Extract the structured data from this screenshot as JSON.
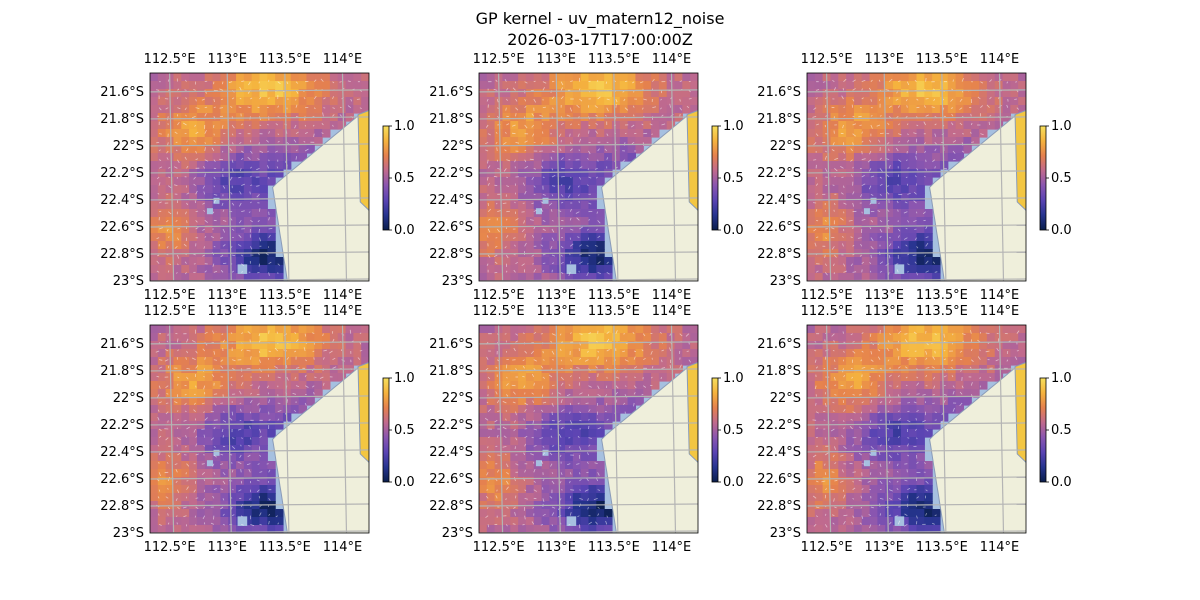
{
  "figure": {
    "title": "GP kernel - uv_matern12_noise",
    "subtitle": "2026-03-17T17:00:00Z"
  },
  "colors": {
    "land": "#efefdb",
    "water_edge": "#a6c0e0",
    "gridline": "#b4b4b4",
    "colormap": [
      "#0a1e4c",
      "#26348f",
      "#5a44b3",
      "#8a56b0",
      "#c06a8e",
      "#e5814e",
      "#f5b33e",
      "#f7df5c"
    ]
  },
  "chart_data": [
    {
      "type": "heatmap",
      "panel": "top-left",
      "lon_labels": [
        "112.5°E",
        "113°E",
        "113.5°E",
        "114°E"
      ],
      "lat_labels": [
        "21.6°S",
        "21.8°S",
        "22°S",
        "22.2°S",
        "22.4°S",
        "22.6°S",
        "22.8°S",
        "23°S"
      ],
      "lon_values": [
        112.5,
        113.0,
        113.5,
        114.0
      ],
      "lat_values": [
        -21.6,
        -21.8,
        -22.0,
        -22.2,
        -22.4,
        -22.6,
        -22.8,
        -23.0
      ],
      "xlim": [
        112.33,
        114.23
      ],
      "ylim": [
        -23.0,
        -21.46
      ],
      "grid": true,
      "colorbar": {
        "range": [
          0.0,
          1.0
        ],
        "ticks": [
          "0.0",
          "0.5",
          "1.0"
        ],
        "tick_values": [
          0,
          0.5,
          1.0
        ]
      },
      "overlay": "uv-vectors"
    },
    {
      "type": "heatmap",
      "panel": "top-middle",
      "lon_labels": [
        "112.5°E",
        "113°E",
        "113.5°E",
        "114°E"
      ],
      "lat_labels": [
        "21.6°S",
        "21.8°S",
        "22°S",
        "22.2°S",
        "22.4°S",
        "22.6°S",
        "22.8°S",
        "23°S"
      ],
      "lon_values": [
        112.5,
        113.0,
        113.5,
        114.0
      ],
      "lat_values": [
        -21.6,
        -21.8,
        -22.0,
        -22.2,
        -22.4,
        -22.6,
        -22.8,
        -23.0
      ],
      "xlim": [
        112.33,
        114.23
      ],
      "ylim": [
        -23.0,
        -21.46
      ],
      "grid": true,
      "colorbar": {
        "range": [
          0.0,
          1.0
        ],
        "ticks": [
          "0.0",
          "0.5",
          "1.0"
        ],
        "tick_values": [
          0,
          0.5,
          1.0
        ]
      },
      "overlay": "uv-vectors"
    },
    {
      "type": "heatmap",
      "panel": "top-right",
      "lon_labels": [
        "112.5°E",
        "113°E",
        "113.5°E",
        "114°E"
      ],
      "lat_labels": [
        "21.6°S",
        "21.8°S",
        "22°S",
        "22.2°S",
        "22.4°S",
        "22.6°S",
        "22.8°S",
        "23°S"
      ],
      "lon_values": [
        112.5,
        113.0,
        113.5,
        114.0
      ],
      "lat_values": [
        -21.6,
        -21.8,
        -22.0,
        -22.2,
        -22.4,
        -22.6,
        -22.8,
        -23.0
      ],
      "xlim": [
        112.33,
        114.23
      ],
      "ylim": [
        -23.0,
        -21.46
      ],
      "grid": true,
      "colorbar": {
        "range": [
          0.0,
          1.0
        ],
        "ticks": [
          "0.0",
          "0.5",
          "1.0"
        ],
        "tick_values": [
          0,
          0.5,
          1.0
        ]
      },
      "overlay": "uv-vectors"
    },
    {
      "type": "heatmap",
      "panel": "bottom-left",
      "lon_labels": [
        "112.5°E",
        "113°E",
        "113.5°E",
        "114°E"
      ],
      "lat_labels": [
        "21.6°S",
        "21.8°S",
        "22°S",
        "22.2°S",
        "22.4°S",
        "22.6°S",
        "22.8°S",
        "23°S"
      ],
      "lon_values": [
        112.5,
        113.0,
        113.5,
        114.0
      ],
      "lat_values": [
        -21.6,
        -21.8,
        -22.0,
        -22.2,
        -22.4,
        -22.6,
        -22.8,
        -23.0
      ],
      "xlim": [
        112.33,
        114.23
      ],
      "ylim": [
        -23.0,
        -21.46
      ],
      "grid": true,
      "colorbar": {
        "range": [
          0.0,
          1.0
        ],
        "ticks": [
          "0.0",
          "0.5",
          "1.0"
        ],
        "tick_values": [
          0,
          0.5,
          1.0
        ]
      },
      "overlay": "uv-vectors"
    },
    {
      "type": "heatmap",
      "panel": "bottom-middle",
      "lon_labels": [
        "112.5°E",
        "113°E",
        "113.5°E",
        "114°E"
      ],
      "lat_labels": [
        "21.6°S",
        "21.8°S",
        "22°S",
        "22.2°S",
        "22.4°S",
        "22.6°S",
        "22.8°S",
        "23°S"
      ],
      "lon_values": [
        112.5,
        113.0,
        113.5,
        114.0
      ],
      "lat_values": [
        -21.6,
        -21.8,
        -22.0,
        -22.2,
        -22.4,
        -22.6,
        -22.8,
        -23.0
      ],
      "xlim": [
        112.33,
        114.23
      ],
      "ylim": [
        -23.0,
        -21.46
      ],
      "grid": true,
      "colorbar": {
        "range": [
          0.0,
          1.0
        ],
        "ticks": [
          "0.0",
          "0.5",
          "1.0"
        ],
        "tick_values": [
          0,
          0.5,
          1.0
        ]
      },
      "overlay": "uv-vectors"
    },
    {
      "type": "heatmap",
      "panel": "bottom-right",
      "lon_labels": [
        "112.5°E",
        "113°E",
        "113.5°E",
        "114°E"
      ],
      "lat_labels": [
        "21.6°S",
        "21.8°S",
        "22°S",
        "22.2°S",
        "22.4°S",
        "22.6°S",
        "22.8°S",
        "23°S"
      ],
      "lon_values": [
        112.5,
        113.0,
        113.5,
        114.0
      ],
      "lat_values": [
        -21.6,
        -21.8,
        -22.0,
        -22.2,
        -22.4,
        -22.6,
        -22.8,
        -23.0
      ],
      "xlim": [
        112.33,
        114.23
      ],
      "ylim": [
        -23.0,
        -21.46
      ],
      "grid": true,
      "colorbar": {
        "range": [
          0.0,
          1.0
        ],
        "ticks": [
          "0.0",
          "0.5",
          "1.0"
        ],
        "tick_values": [
          0,
          0.5,
          1.0
        ]
      },
      "overlay": "uv-vectors"
    }
  ]
}
